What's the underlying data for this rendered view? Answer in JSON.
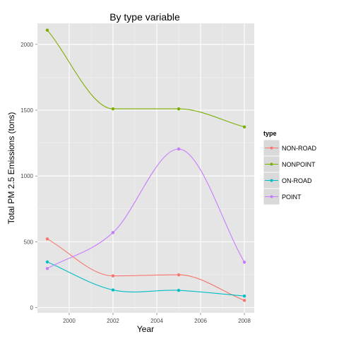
{
  "chart_data": {
    "type": "line",
    "title": "By type variable",
    "xlabel": "Year",
    "ylabel": "Total PM 2.5 Emissions (tons)",
    "x": [
      1999,
      2002,
      2005,
      2008
    ],
    "xlim": [
      1998.55,
      2008.45
    ],
    "ylim": [
      -40,
      2160
    ],
    "x_ticks": [
      2000,
      2002,
      2004,
      2006,
      2008
    ],
    "y_ticks": [
      0,
      500,
      1000,
      1500,
      2000
    ],
    "x_tick_labels": [
      "2000",
      "2002",
      "2004",
      "2006",
      "2008"
    ],
    "y_tick_labels": [
      "0",
      "500",
      "1000",
      "1500",
      "2000"
    ],
    "grid": true,
    "background": "#e5e5e5",
    "smoothed": true,
    "legend": {
      "title": "type",
      "position": "right"
    },
    "series": [
      {
        "name": "NON-ROAD",
        "color": "#f8766d",
        "values": [
          522,
          241,
          249,
          55
        ]
      },
      {
        "name": "NONPOINT",
        "color": "#7cae00",
        "values": [
          2108,
          1510,
          1510,
          1373
        ]
      },
      {
        "name": "ON-ROAD",
        "color": "#00bfc4",
        "values": [
          347,
          134,
          131,
          88
        ]
      },
      {
        "name": "POINT",
        "color": "#c77cff",
        "values": [
          297,
          570,
          1205,
          345
        ]
      }
    ]
  }
}
